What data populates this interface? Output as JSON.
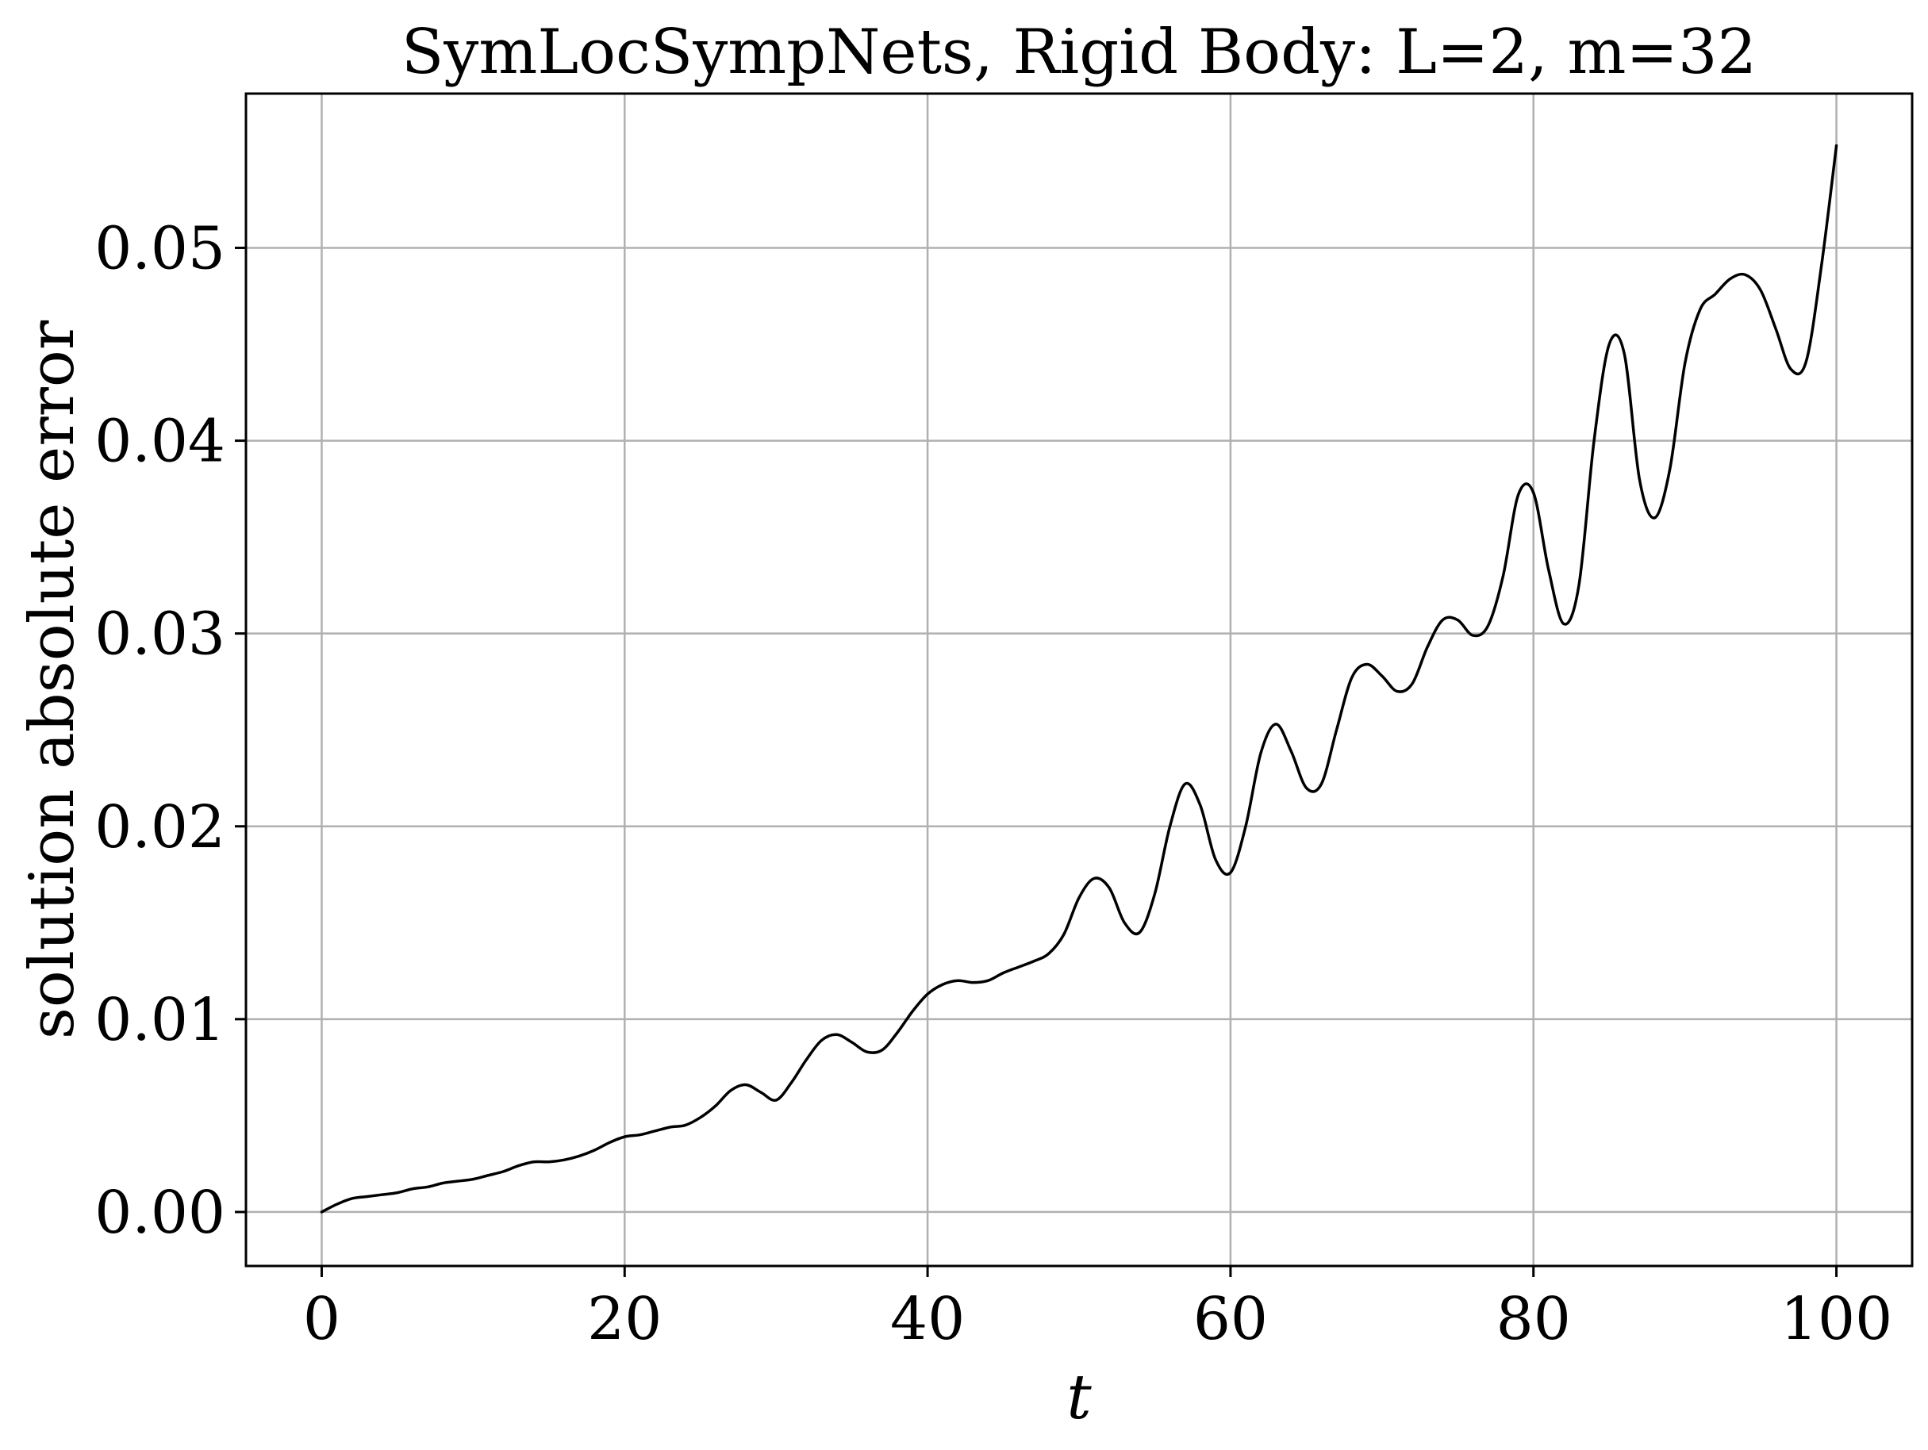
{
  "chart_data": {
    "type": "line",
    "title": "SymLocSympNets, Rigid Body: L=2, m=32",
    "xlabel": "t",
    "ylabel": "solution absolute error",
    "xlim": [
      -5,
      105
    ],
    "ylim": [
      -0.0028,
      0.058
    ],
    "xticks": [
      0,
      20,
      40,
      60,
      80,
      100
    ],
    "xtick_labels": [
      "0",
      "20",
      "40",
      "60",
      "80",
      "100"
    ],
    "yticks": [
      0.0,
      0.01,
      0.02,
      0.03,
      0.04,
      0.05
    ],
    "ytick_labels": [
      "0.00",
      "0.01",
      "0.02",
      "0.03",
      "0.04",
      "0.05"
    ],
    "grid": true,
    "line_color": "#000000",
    "grid_color": "#b0b0b0",
    "series": [
      {
        "x": [
          0,
          1,
          2,
          3,
          4,
          5,
          6,
          7,
          8,
          9,
          10,
          11,
          12,
          13,
          14,
          15,
          16,
          17,
          18,
          19,
          20,
          21,
          22,
          23,
          24,
          25,
          26,
          27,
          28,
          29,
          30,
          31,
          32,
          33,
          34,
          35,
          36,
          37,
          38,
          39,
          40,
          41,
          42,
          43,
          44,
          45,
          46,
          47,
          48,
          49,
          50,
          51,
          52,
          53,
          54,
          55,
          56,
          57,
          58,
          59,
          60,
          61,
          62,
          63,
          64,
          65,
          66,
          67,
          68,
          69,
          70,
          71,
          72,
          73,
          74,
          75,
          76,
          77,
          78,
          79,
          80,
          81,
          82,
          83,
          84,
          85,
          86,
          87,
          88,
          89,
          90,
          91,
          92,
          93,
          94,
          95,
          96,
          97,
          98,
          99,
          100
        ],
        "y": [
          0.0,
          0.0004,
          0.0007,
          0.0008,
          0.0009,
          0.001,
          0.0012,
          0.0013,
          0.0015,
          0.0016,
          0.0017,
          0.0019,
          0.0021,
          0.0024,
          0.0026,
          0.0026,
          0.0027,
          0.0029,
          0.0032,
          0.0036,
          0.0039,
          0.004,
          0.0042,
          0.0044,
          0.0045,
          0.0049,
          0.0055,
          0.0063,
          0.0066,
          0.0062,
          0.0058,
          0.0067,
          0.0079,
          0.0089,
          0.0092,
          0.0088,
          0.0083,
          0.0084,
          0.0093,
          0.0104,
          0.0113,
          0.0118,
          0.012,
          0.0119,
          0.012,
          0.0124,
          0.0127,
          0.013,
          0.0134,
          0.0144,
          0.0163,
          0.0173,
          0.0168,
          0.015,
          0.0145,
          0.0165,
          0.02,
          0.0222,
          0.0211,
          0.0183,
          0.0176,
          0.02,
          0.0238,
          0.0253,
          0.0239,
          0.022,
          0.0222,
          0.025,
          0.0277,
          0.0284,
          0.0278,
          0.027,
          0.0274,
          0.0293,
          0.0307,
          0.0307,
          0.0299,
          0.0304,
          0.033,
          0.0372,
          0.0373,
          0.0333,
          0.0305,
          0.0325,
          0.04,
          0.045,
          0.0445,
          0.038,
          0.036,
          0.0385,
          0.044,
          0.0468,
          0.0476,
          0.0484,
          0.0486,
          0.0478,
          0.0458,
          0.0437,
          0.0441,
          0.049,
          0.0553
        ]
      }
    ]
  }
}
